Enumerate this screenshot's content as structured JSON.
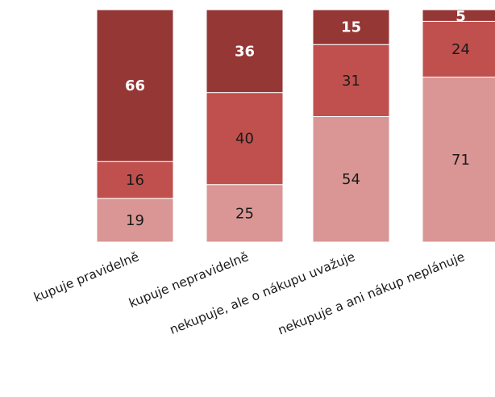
{
  "chart_data": {
    "type": "bar",
    "stacked": true,
    "percent_stacked": true,
    "categories": [
      "kupuje pravidelně",
      "kupuje nepravidelně",
      "nekupuje, ale o nákupu uvažuje",
      "nekupuje a ani nákup neplánuje"
    ],
    "series": [
      {
        "values": [
          19,
          25,
          54,
          71
        ],
        "color": "#da9694",
        "label_color": "#1a1a1a",
        "label_bold": false
      },
      {
        "values": [
          16,
          40,
          31,
          24
        ],
        "color": "#c0504d",
        "label_color": "#1a1a1a",
        "label_bold": false
      },
      {
        "values": [
          66,
          36,
          15,
          5
        ],
        "color": "#953735",
        "label_color": "#ffffff",
        "label_bold": true
      }
    ],
    "title": "",
    "xlabel": "",
    "ylabel": "",
    "legend": "none",
    "grid": false,
    "data_labels": true
  }
}
